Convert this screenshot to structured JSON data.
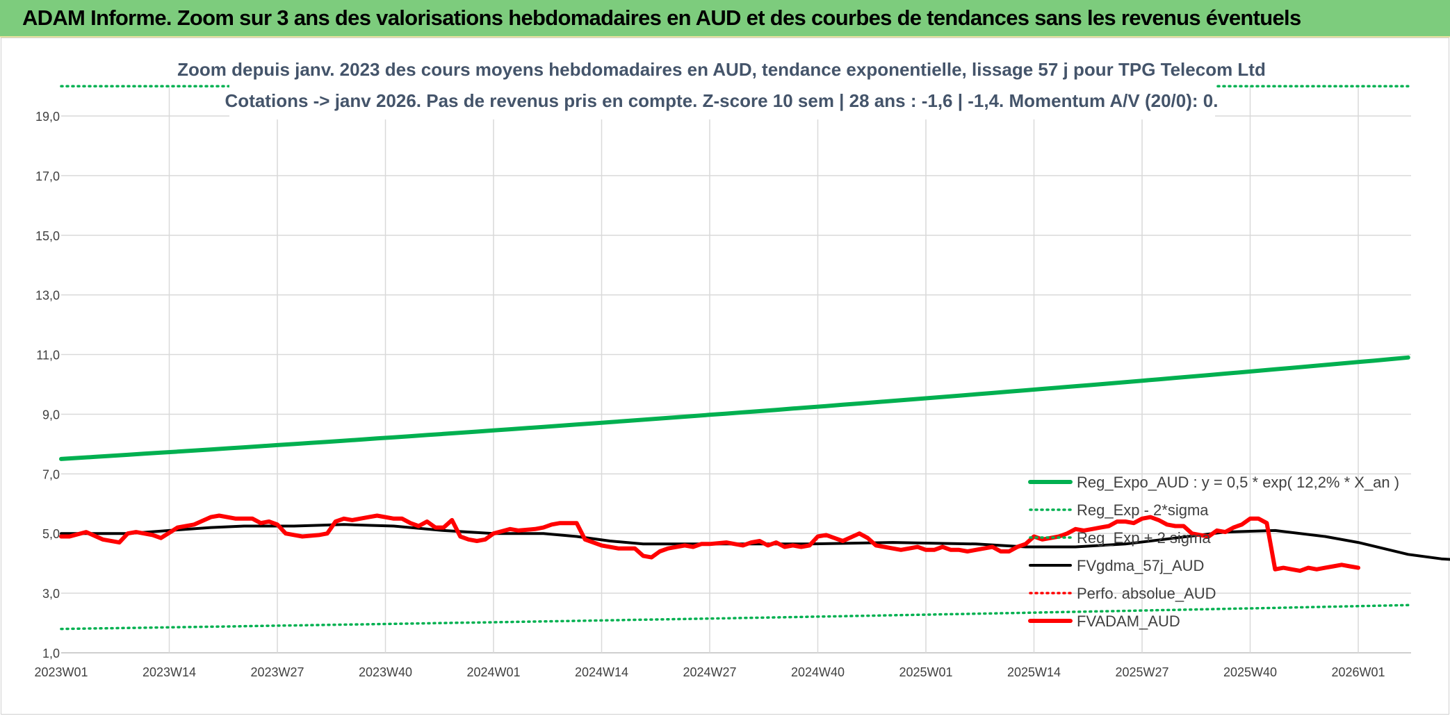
{
  "header": {
    "title": "ADAM Informe. Zoom sur 3 ans des valorisations hebdomadaires en AUD et des courbes de tendances sans les revenus éventuels"
  },
  "colors": {
    "header_bg": "#7dcc7d",
    "reg_expo": "#00b050",
    "fvgdma": "#000000",
    "fvadam": "#ff0000",
    "perfo": "#ff0000",
    "grid": "#d9d9d9"
  },
  "chart_data": {
    "type": "line",
    "title": "Zoom depuis janv. 2023 des cours moyens hebdomadaires en AUD, tendance exponentielle, lissage 57 j pour TPG Telecom Ltd",
    "subtitle": "Cotations -> janv 2026. Pas de revenus pris en compte. Z-score 10 sem | 28 ans : -1,6 | -1,4. Momentum A/V (20/0): 0.",
    "xlabel": "",
    "ylabel": "",
    "ylim": [
      1,
      20
    ],
    "y_ticks": [
      "1,0",
      "3,0",
      "5,0",
      "7,0",
      "9,0",
      "11,0",
      "13,0",
      "15,0",
      "17,0",
      "19,0"
    ],
    "x_tick_labels": [
      "2023W01",
      "2023W14",
      "2023W27",
      "2023W40",
      "2024W01",
      "2024W14",
      "2024W27",
      "2024W40",
      "2025W01",
      "2025W14",
      "2025W27",
      "2025W40",
      "2026W01"
    ],
    "x_weeks": 162,
    "grid": true,
    "legend_position": "bottom-right",
    "series": [
      {
        "name": "Reg_Expo_AUD : y = 0,5 * exp( 12,2% *  X_an )",
        "style": "solid-thick",
        "color": "#00b050",
        "start_value": 7.5,
        "end_value": 10.9
      },
      {
        "name": "Reg_Exp - 2*sigma",
        "style": "dotted",
        "color": "#00b050",
        "start_value": 1.8,
        "end_value": 2.6
      },
      {
        "name": "Reg_Exp + 2 sigma",
        "style": "dotted",
        "color": "#00b050",
        "start_value": 20.0,
        "end_value": 20.0
      },
      {
        "name": "FVgdma_57j_AUD",
        "style": "solid",
        "color": "#000000",
        "points": [
          [
            0,
            5.0
          ],
          [
            8,
            5.0
          ],
          [
            13,
            5.1
          ],
          [
            18,
            5.2
          ],
          [
            22,
            5.25
          ],
          [
            28,
            5.25
          ],
          [
            34,
            5.3
          ],
          [
            40,
            5.25
          ],
          [
            46,
            5.1
          ],
          [
            52,
            5.0
          ],
          [
            58,
            5.0
          ],
          [
            62,
            4.9
          ],
          [
            66,
            4.75
          ],
          [
            70,
            4.65
          ],
          [
            80,
            4.65
          ],
          [
            90,
            4.65
          ],
          [
            100,
            4.7
          ],
          [
            110,
            4.65
          ],
          [
            116,
            4.55
          ],
          [
            122,
            4.55
          ],
          [
            128,
            4.65
          ],
          [
            134,
            4.85
          ],
          [
            140,
            5.05
          ],
          [
            146,
            5.1
          ],
          [
            152,
            4.9
          ],
          [
            156,
            4.7
          ],
          [
            162,
            4.3
          ],
          [
            166,
            4.15
          ],
          [
            172,
            4.05
          ]
        ]
      },
      {
        "name": "Perfo. absolue_AUD",
        "style": "dotted",
        "color": "#ff0000",
        "points": []
      },
      {
        "name": "FVADAM_AUD",
        "style": "solid-thick",
        "color": "#ff0000",
        "points": [
          [
            0,
            4.9
          ],
          [
            1,
            4.9
          ],
          [
            3,
            5.05
          ],
          [
            5,
            4.8
          ],
          [
            7,
            4.7
          ],
          [
            8,
            5.0
          ],
          [
            9,
            5.05
          ],
          [
            11,
            4.95
          ],
          [
            12,
            4.85
          ],
          [
            14,
            5.2
          ],
          [
            16,
            5.3
          ],
          [
            18,
            5.55
          ],
          [
            19,
            5.6
          ],
          [
            21,
            5.5
          ],
          [
            23,
            5.5
          ],
          [
            24,
            5.35
          ],
          [
            25,
            5.4
          ],
          [
            26,
            5.3
          ],
          [
            27,
            5.0
          ],
          [
            29,
            4.9
          ],
          [
            31,
            4.95
          ],
          [
            32,
            5.0
          ],
          [
            33,
            5.4
          ],
          [
            34,
            5.5
          ],
          [
            35,
            5.45
          ],
          [
            37,
            5.55
          ],
          [
            38,
            5.6
          ],
          [
            40,
            5.5
          ],
          [
            41,
            5.5
          ],
          [
            42,
            5.35
          ],
          [
            43,
            5.25
          ],
          [
            44,
            5.4
          ],
          [
            45,
            5.2
          ],
          [
            46,
            5.2
          ],
          [
            47,
            5.45
          ],
          [
            48,
            4.9
          ],
          [
            49,
            4.8
          ],
          [
            50,
            4.75
          ],
          [
            51,
            4.8
          ],
          [
            52,
            5.0
          ],
          [
            54,
            5.15
          ],
          [
            55,
            5.1
          ],
          [
            57,
            5.15
          ],
          [
            58,
            5.2
          ],
          [
            59,
            5.3
          ],
          [
            60,
            5.35
          ],
          [
            62,
            5.35
          ],
          [
            63,
            4.8
          ],
          [
            65,
            4.6
          ],
          [
            67,
            4.5
          ],
          [
            69,
            4.5
          ],
          [
            70,
            4.25
          ],
          [
            71,
            4.2
          ],
          [
            72,
            4.4
          ],
          [
            73,
            4.5
          ],
          [
            75,
            4.6
          ],
          [
            76,
            4.55
          ],
          [
            77,
            4.65
          ],
          [
            78,
            4.65
          ],
          [
            80,
            4.7
          ],
          [
            81,
            4.65
          ],
          [
            82,
            4.6
          ],
          [
            83,
            4.7
          ],
          [
            84,
            4.75
          ],
          [
            85,
            4.6
          ],
          [
            86,
            4.7
          ],
          [
            87,
            4.55
          ],
          [
            88,
            4.6
          ],
          [
            89,
            4.55
          ],
          [
            90,
            4.6
          ],
          [
            91,
            4.9
          ],
          [
            92,
            4.95
          ],
          [
            93,
            4.85
          ],
          [
            94,
            4.75
          ],
          [
            96,
            5.0
          ],
          [
            97,
            4.85
          ],
          [
            98,
            4.6
          ],
          [
            99,
            4.55
          ],
          [
            100,
            4.5
          ],
          [
            101,
            4.45
          ],
          [
            102,
            4.5
          ],
          [
            103,
            4.55
          ],
          [
            104,
            4.45
          ],
          [
            105,
            4.45
          ],
          [
            106,
            4.55
          ],
          [
            107,
            4.45
          ],
          [
            108,
            4.45
          ],
          [
            109,
            4.4
          ],
          [
            110,
            4.45
          ],
          [
            111,
            4.5
          ],
          [
            112,
            4.55
          ],
          [
            113,
            4.4
          ],
          [
            114,
            4.4
          ],
          [
            115,
            4.55
          ],
          [
            116,
            4.65
          ],
          [
            117,
            4.9
          ],
          [
            118,
            4.8
          ],
          [
            119,
            4.85
          ],
          [
            120,
            4.9
          ],
          [
            121,
            5.0
          ],
          [
            122,
            5.15
          ],
          [
            123,
            5.1
          ],
          [
            124,
            5.15
          ],
          [
            125,
            5.2
          ],
          [
            126,
            5.25
          ],
          [
            127,
            5.4
          ],
          [
            128,
            5.4
          ],
          [
            129,
            5.35
          ],
          [
            130,
            5.5
          ],
          [
            131,
            5.55
          ],
          [
            132,
            5.45
          ],
          [
            133,
            5.3
          ],
          [
            134,
            5.25
          ],
          [
            135,
            5.25
          ],
          [
            136,
            5.0
          ],
          [
            137,
            4.95
          ],
          [
            138,
            4.9
          ],
          [
            139,
            5.1
          ],
          [
            140,
            5.05
          ],
          [
            141,
            5.2
          ],
          [
            142,
            5.3
          ],
          [
            143,
            5.5
          ],
          [
            144,
            5.5
          ],
          [
            145,
            5.35
          ],
          [
            146,
            3.8
          ],
          [
            147,
            3.85
          ],
          [
            148,
            3.8
          ],
          [
            149,
            3.75
          ],
          [
            150,
            3.85
          ],
          [
            151,
            3.8
          ],
          [
            152,
            3.85
          ],
          [
            153,
            3.9
          ],
          [
            154,
            3.95
          ],
          [
            155,
            3.9
          ],
          [
            156,
            3.85
          ]
        ]
      }
    ]
  }
}
